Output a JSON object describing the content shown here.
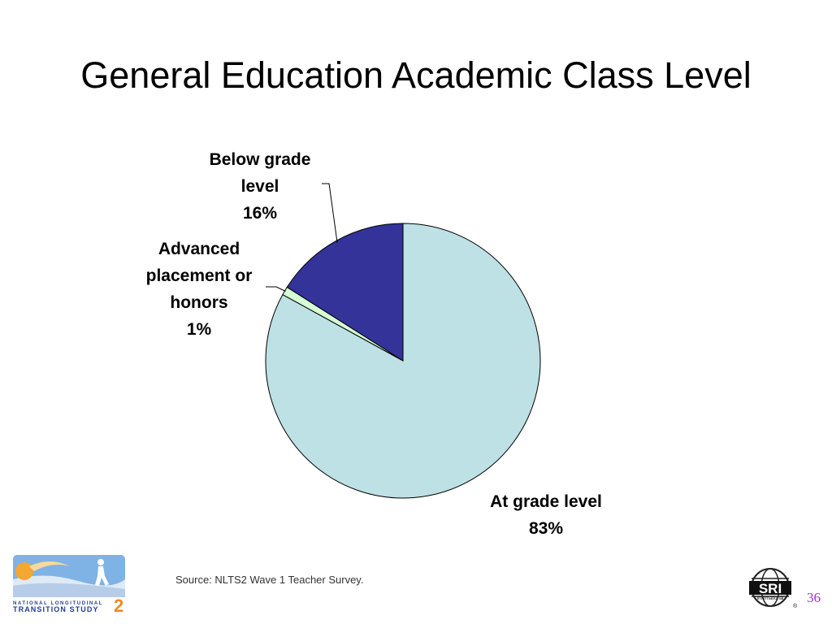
{
  "slide": {
    "title": "General Education Academic Class Level",
    "source": "Source: NLTS2 Wave 1 Teacher Survey.",
    "page_number": "36"
  },
  "logos": {
    "nlts": {
      "line1": "NATIONAL LONGITUDINAL",
      "line2": "TRANSITION STUDY",
      "number": "2",
      "icon": "walking-person-icon"
    },
    "sri": {
      "text": "SRI",
      "subtext": "International",
      "mark": "®",
      "icon": "globe-icon"
    }
  },
  "chart_data": {
    "type": "pie",
    "title": "",
    "start": "12 o'clock",
    "direction": "clockwise",
    "slices": [
      {
        "label_lines": [
          "At grade level",
          "83%"
        ],
        "value": 83,
        "color": "#bde1e5"
      },
      {
        "label_lines": [
          "Advanced",
          "placement or",
          "honors",
          "1%"
        ],
        "value": 1,
        "color": "#d5ffd5"
      },
      {
        "label_lines": [
          "Below grade",
          "level",
          "16%"
        ],
        "value": 16,
        "color": "#333399"
      }
    ],
    "label_placement": [
      "bottom-right",
      "left",
      "top-left"
    ]
  }
}
